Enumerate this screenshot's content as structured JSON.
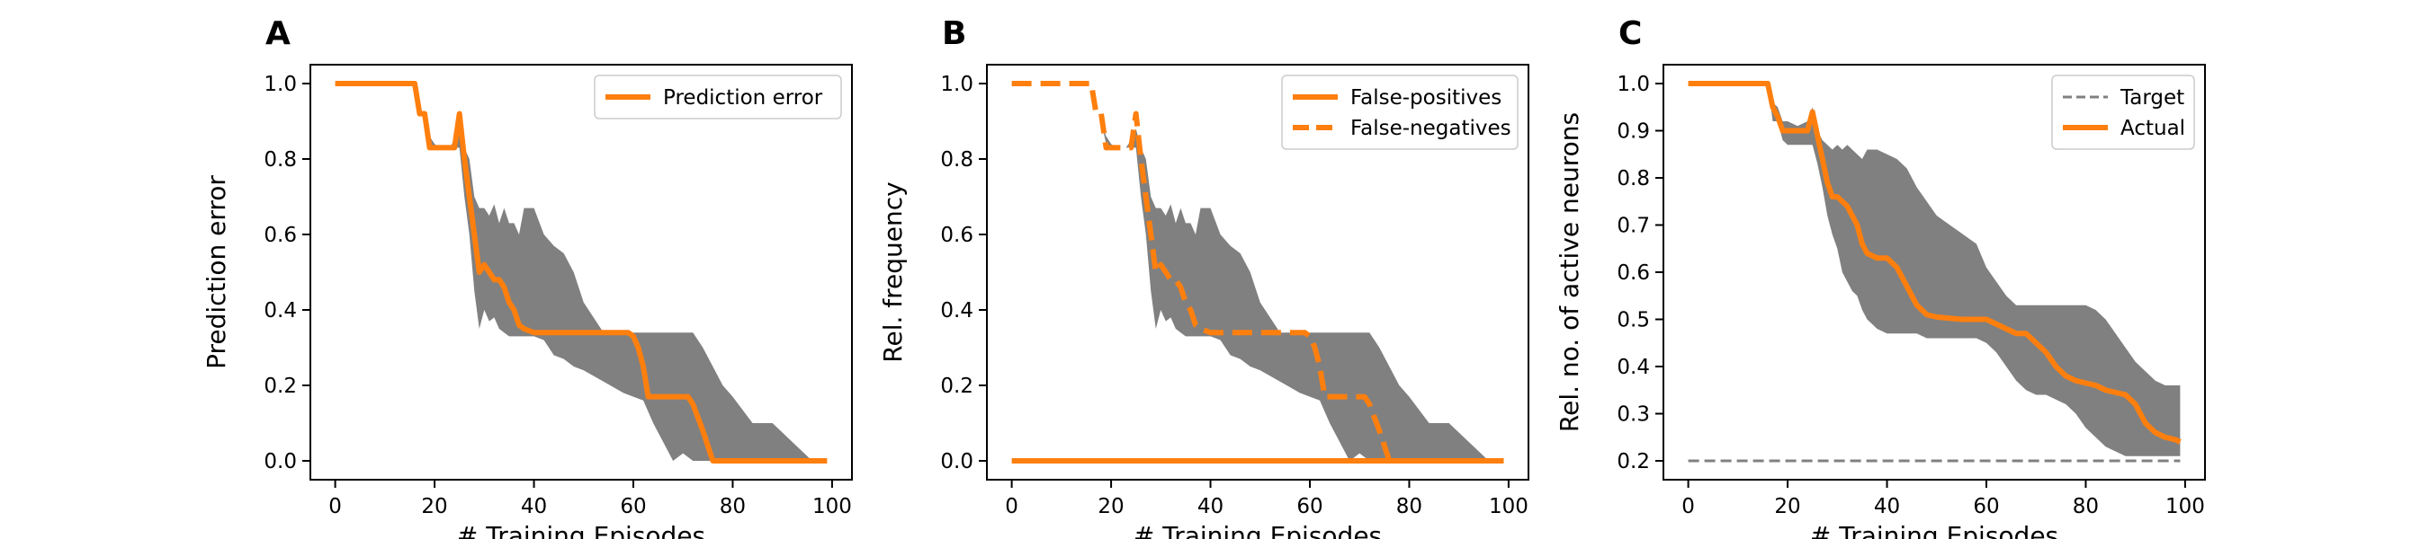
{
  "colors": {
    "line": "#ff7f0e",
    "band": "#808080",
    "target": "#808080",
    "axis": "#000000"
  },
  "chart_data": [
    {
      "panel_label": "A",
      "type": "line",
      "xlabel": "# Training Episodes",
      "ylabel": "Prediction error",
      "xlim": [
        -5,
        104
      ],
      "ylim": [
        -0.05,
        1.05
      ],
      "xticks": [
        0,
        20,
        40,
        60,
        80,
        100
      ],
      "yticks": [
        0.0,
        0.2,
        0.4,
        0.6,
        0.8,
        1.0
      ],
      "tick_decimals": 1,
      "legend_position": "top-right",
      "band": {
        "x": [
          16,
          17,
          18,
          19,
          20,
          21,
          22,
          23,
          24,
          25,
          26,
          27,
          28,
          29,
          30,
          31,
          32,
          33,
          34,
          35,
          36,
          37,
          38,
          40,
          42,
          44,
          46,
          48,
          50,
          54,
          58,
          60,
          62,
          64,
          66,
          68,
          70,
          72,
          74,
          76,
          78,
          80,
          84,
          88,
          92,
          96,
          99
        ],
        "upper": [
          1.0,
          0.92,
          0.9,
          0.86,
          0.84,
          0.83,
          0.83,
          0.83,
          0.85,
          0.88,
          0.83,
          0.8,
          0.7,
          0.67,
          0.67,
          0.65,
          0.68,
          0.63,
          0.67,
          0.63,
          0.63,
          0.6,
          0.67,
          0.67,
          0.6,
          0.57,
          0.55,
          0.5,
          0.42,
          0.34,
          0.34,
          0.34,
          0.34,
          0.34,
          0.34,
          0.34,
          0.34,
          0.34,
          0.3,
          0.25,
          0.2,
          0.17,
          0.1,
          0.1,
          0.05,
          0.0,
          0.0
        ],
        "lower": [
          1.0,
          0.92,
          0.9,
          0.84,
          0.83,
          0.83,
          0.83,
          0.83,
          0.83,
          0.83,
          0.7,
          0.6,
          0.45,
          0.35,
          0.4,
          0.37,
          0.38,
          0.35,
          0.34,
          0.33,
          0.33,
          0.33,
          0.33,
          0.33,
          0.32,
          0.28,
          0.27,
          0.25,
          0.24,
          0.21,
          0.18,
          0.17,
          0.16,
          0.1,
          0.05,
          0.0,
          0.02,
          0.0,
          0.0,
          0.0,
          0.0,
          0.0,
          0.0,
          0.0,
          0.0,
          0.0,
          0.0
        ]
      },
      "series": [
        {
          "name": "Prediction error",
          "style": "solid",
          "x": [
            0,
            16,
            17,
            18,
            19,
            24,
            25,
            26,
            27,
            28,
            29,
            30,
            31,
            32,
            33,
            34,
            35,
            36,
            37,
            38,
            40,
            50,
            59,
            60,
            61,
            62,
            63,
            70,
            71,
            72,
            74,
            76,
            80,
            90,
            99
          ],
          "y": [
            1.0,
            1.0,
            0.92,
            0.92,
            0.83,
            0.83,
            0.92,
            0.8,
            0.7,
            0.6,
            0.5,
            0.52,
            0.5,
            0.48,
            0.48,
            0.46,
            0.42,
            0.4,
            0.36,
            0.35,
            0.34,
            0.34,
            0.34,
            0.33,
            0.3,
            0.25,
            0.17,
            0.17,
            0.17,
            0.15,
            0.08,
            0.0,
            0.0,
            0.0,
            0.0
          ]
        }
      ]
    },
    {
      "panel_label": "B",
      "type": "line",
      "xlabel": "# Training Episodes",
      "ylabel": "Rel. frequency",
      "xlim": [
        -5,
        104
      ],
      "ylim": [
        -0.05,
        1.05
      ],
      "xticks": [
        0,
        20,
        40,
        60,
        80,
        100
      ],
      "yticks": [
        0.0,
        0.2,
        0.4,
        0.6,
        0.8,
        1.0
      ],
      "tick_decimals": 1,
      "legend_position": "top-right",
      "band": {
        "x": [
          16,
          17,
          18,
          19,
          20,
          21,
          22,
          23,
          24,
          25,
          26,
          27,
          28,
          29,
          30,
          31,
          32,
          33,
          34,
          35,
          36,
          37,
          38,
          40,
          42,
          44,
          46,
          48,
          50,
          54,
          58,
          60,
          62,
          64,
          66,
          68,
          70,
          72,
          74,
          76,
          78,
          80,
          84,
          88,
          92,
          96,
          99
        ],
        "upper": [
          1.0,
          0.92,
          0.9,
          0.86,
          0.84,
          0.83,
          0.83,
          0.83,
          0.85,
          0.88,
          0.83,
          0.8,
          0.7,
          0.67,
          0.67,
          0.65,
          0.68,
          0.63,
          0.67,
          0.63,
          0.63,
          0.6,
          0.67,
          0.67,
          0.6,
          0.57,
          0.55,
          0.5,
          0.42,
          0.34,
          0.34,
          0.34,
          0.34,
          0.34,
          0.34,
          0.34,
          0.34,
          0.34,
          0.3,
          0.25,
          0.2,
          0.17,
          0.1,
          0.1,
          0.05,
          0.0,
          0.0
        ],
        "lower": [
          1.0,
          0.92,
          0.9,
          0.84,
          0.83,
          0.83,
          0.83,
          0.83,
          0.83,
          0.83,
          0.7,
          0.6,
          0.45,
          0.35,
          0.4,
          0.37,
          0.38,
          0.35,
          0.34,
          0.33,
          0.33,
          0.33,
          0.33,
          0.33,
          0.32,
          0.28,
          0.27,
          0.25,
          0.24,
          0.21,
          0.18,
          0.17,
          0.16,
          0.1,
          0.05,
          0.0,
          0.02,
          0.0,
          0.0,
          0.0,
          0.0,
          0.0,
          0.0,
          0.0,
          0.0,
          0.0,
          0.0
        ]
      },
      "series": [
        {
          "name": "False-positives",
          "style": "solid",
          "x": [
            0,
            99
          ],
          "y": [
            0.0,
            0.0
          ]
        },
        {
          "name": "False-negatives",
          "style": "dashed",
          "x": [
            0,
            16,
            17,
            18,
            19,
            24,
            25,
            26,
            27,
            28,
            29,
            30,
            31,
            32,
            33,
            34,
            35,
            36,
            37,
            38,
            40,
            50,
            59,
            60,
            61,
            62,
            63,
            70,
            71,
            72,
            74,
            76,
            80,
            90,
            99
          ],
          "y": [
            1.0,
            1.0,
            0.92,
            0.92,
            0.83,
            0.83,
            0.92,
            0.8,
            0.7,
            0.6,
            0.5,
            0.52,
            0.5,
            0.48,
            0.48,
            0.46,
            0.42,
            0.4,
            0.36,
            0.35,
            0.34,
            0.34,
            0.34,
            0.33,
            0.3,
            0.25,
            0.17,
            0.17,
            0.17,
            0.15,
            0.08,
            0.0,
            0.0,
            0.0,
            0.0
          ]
        }
      ]
    },
    {
      "panel_label": "C",
      "type": "line",
      "xlabel": "# Training Episodes",
      "ylabel": "Rel. no. of active neurons",
      "xlim": [
        -5,
        104
      ],
      "ylim": [
        0.16,
        1.04
      ],
      "xticks": [
        0,
        20,
        40,
        60,
        80,
        100
      ],
      "yticks": [
        0.2,
        0.3,
        0.4,
        0.5,
        0.6,
        0.7,
        0.8,
        0.9,
        1.0
      ],
      "tick_decimals": 1,
      "legend_position": "top-right",
      "band": {
        "x": [
          16,
          17,
          18,
          19,
          20,
          22,
          24,
          25,
          26,
          27,
          28,
          29,
          30,
          31,
          32,
          33,
          34,
          35,
          36,
          38,
          40,
          42,
          44,
          46,
          48,
          50,
          54,
          58,
          60,
          62,
          64,
          66,
          68,
          70,
          72,
          74,
          76,
          78,
          80,
          82,
          84,
          86,
          88,
          90,
          92,
          94,
          96,
          98,
          99
        ],
        "upper": [
          1.0,
          0.96,
          0.95,
          0.92,
          0.92,
          0.91,
          0.92,
          0.95,
          0.9,
          0.88,
          0.87,
          0.86,
          0.87,
          0.86,
          0.87,
          0.86,
          0.85,
          0.84,
          0.86,
          0.86,
          0.85,
          0.84,
          0.82,
          0.78,
          0.75,
          0.72,
          0.69,
          0.66,
          0.61,
          0.58,
          0.55,
          0.53,
          0.53,
          0.53,
          0.53,
          0.53,
          0.53,
          0.53,
          0.53,
          0.52,
          0.5,
          0.47,
          0.44,
          0.41,
          0.39,
          0.37,
          0.36,
          0.36,
          0.36
        ],
        "lower": [
          1.0,
          0.92,
          0.92,
          0.88,
          0.87,
          0.87,
          0.87,
          0.87,
          0.83,
          0.78,
          0.72,
          0.68,
          0.65,
          0.6,
          0.58,
          0.56,
          0.55,
          0.52,
          0.5,
          0.48,
          0.47,
          0.47,
          0.47,
          0.47,
          0.46,
          0.46,
          0.46,
          0.46,
          0.45,
          0.43,
          0.4,
          0.37,
          0.35,
          0.34,
          0.34,
          0.33,
          0.32,
          0.3,
          0.27,
          0.25,
          0.23,
          0.22,
          0.21,
          0.21,
          0.21,
          0.21,
          0.21,
          0.21,
          0.21
        ]
      },
      "series": [
        {
          "name": "Target",
          "style": "dashed",
          "thin": true,
          "x": [
            0,
            99
          ],
          "y": [
            0.2,
            0.2
          ]
        },
        {
          "name": "Actual",
          "style": "solid",
          "x": [
            0,
            16,
            17,
            18,
            19,
            22,
            24,
            25,
            26,
            27,
            28,
            29,
            30,
            31,
            32,
            33,
            34,
            35,
            36,
            38,
            40,
            42,
            44,
            46,
            48,
            50,
            55,
            60,
            62,
            64,
            66,
            68,
            70,
            72,
            74,
            76,
            78,
            80,
            82,
            84,
            86,
            88,
            90,
            92,
            94,
            96,
            98,
            99
          ],
          "y": [
            1.0,
            1.0,
            0.95,
            0.93,
            0.9,
            0.9,
            0.9,
            0.94,
            0.89,
            0.84,
            0.79,
            0.76,
            0.76,
            0.75,
            0.74,
            0.72,
            0.7,
            0.66,
            0.64,
            0.63,
            0.63,
            0.61,
            0.57,
            0.53,
            0.51,
            0.505,
            0.5,
            0.5,
            0.49,
            0.48,
            0.47,
            0.47,
            0.45,
            0.43,
            0.4,
            0.38,
            0.37,
            0.365,
            0.36,
            0.35,
            0.345,
            0.34,
            0.32,
            0.28,
            0.26,
            0.25,
            0.245,
            0.24
          ]
        }
      ]
    }
  ]
}
